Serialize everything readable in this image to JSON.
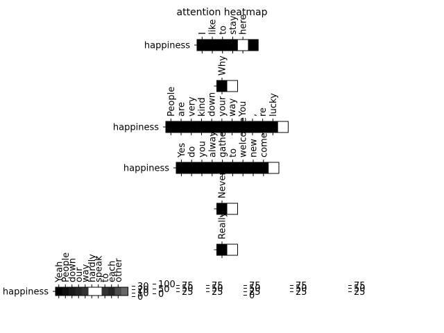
{
  "chart_data": {
    "type": "heatmap",
    "title": "attention heatmap",
    "panels": [
      {
        "ylabel": "happiness",
        "tokens": [
          "I",
          "like",
          "to",
          "stay",
          "here"
        ],
        "values": [
          0,
          0,
          0,
          0,
          100,
          0
        ]
      },
      {
        "ylabel": "",
        "tokens": [
          "Why"
        ],
        "values": [
          0,
          100
        ]
      },
      {
        "ylabel": "happiness",
        "tokens": [
          "People",
          "are",
          "very",
          "kind",
          "down",
          "your",
          "way",
          "You",
          ",",
          "re",
          "lucky"
        ],
        "values": [
          0,
          0,
          0,
          0,
          0,
          0,
          0,
          0,
          0,
          0,
          0,
          100
        ]
      },
      {
        "ylabel": "happiness",
        "tokens": [
          "Yes",
          "do",
          "you",
          "always",
          "gather",
          "to",
          "welcome",
          "new",
          "comers"
        ],
        "values": [
          0,
          0,
          0,
          0,
          0,
          0,
          0,
          0,
          0,
          100
        ]
      },
      {
        "ylabel": "",
        "tokens": [
          "Never"
        ],
        "values": [
          0,
          100
        ]
      },
      {
        "ylabel": "",
        "tokens": [
          "Really"
        ],
        "values": [
          0,
          100
        ]
      },
      {
        "ylabel": "happiness",
        "tokens": [
          "Yeah",
          "People",
          "down",
          "our",
          "way",
          "hardly",
          "speak",
          "to",
          "each",
          "other"
        ],
        "values": [
          0,
          5,
          10,
          15,
          20,
          100,
          100,
          20,
          15,
          30,
          40
        ]
      }
    ],
    "colorbars": [
      {
        "ticks": [
          "30",
          "20",
          "10",
          "0"
        ]
      },
      {
        "ticks": [
          "100",
          "50",
          "0"
        ]
      },
      {
        "ticks": [
          "75",
          "50",
          "25"
        ]
      },
      {
        "ticks": [
          "75",
          "50",
          "25"
        ]
      },
      {
        "ticks": [
          "75",
          "50",
          "25",
          "0"
        ]
      },
      {
        "ticks": [
          "75",
          "50",
          "25"
        ]
      },
      {
        "ticks": [
          "75",
          "50",
          "25"
        ]
      }
    ]
  }
}
